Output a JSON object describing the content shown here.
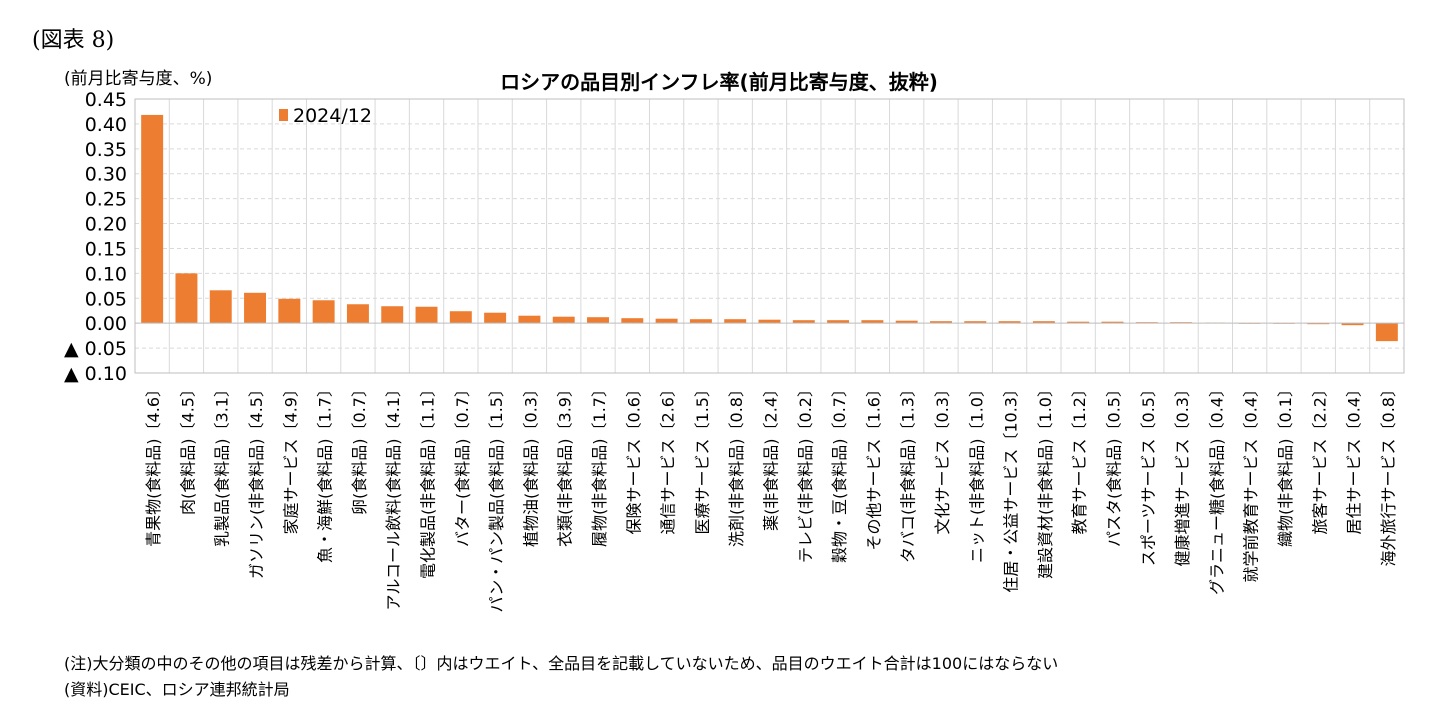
{
  "figure_label": "(図表 8)",
  "notes": {
    "note": "(注)大分類の中のその他の項目は残差から計算、〔〕内はウエイト、全品目を記載していないため、品目のウエイト合計は100にはならない",
    "source": "(資料)CEIC、ロシア連邦統計局"
  },
  "colors": {
    "bar": "#ED7D31",
    "grid": "#D9D9D9",
    "axis": "#BFBFBF"
  },
  "chart_data": {
    "type": "bar",
    "title": "ロシアの品目別インフレ率(前月比寄与度、抜粋)",
    "ylabel": "(前月比寄与度、%)",
    "xlabel": "",
    "ylim": [
      -0.1,
      0.45
    ],
    "yticks": [
      -0.1,
      -0.05,
      0.0,
      0.05,
      0.1,
      0.15,
      0.2,
      0.25,
      0.3,
      0.35,
      0.4,
      0.45
    ],
    "ytick_labels": [
      "▲ 0.10",
      "▲ 0.05",
      "0.00",
      "0.05",
      "0.10",
      "0.15",
      "0.20",
      "0.25",
      "0.30",
      "0.35",
      "0.40",
      "0.45"
    ],
    "grid": true,
    "legend_position": "top-left",
    "categories": [
      "青果物(食料品)〔4.6〕",
      "肉(食料品)〔4.5〕",
      "乳製品(食料品)〔3.1〕",
      "ガソリン(非食料品)〔4.5〕",
      "家庭サービス〔4.9〕",
      "魚・海鮮(食料品)〔1.7〕",
      "卵(食料品)〔0.7〕",
      "アルコール飲料(食料品)〔4.1〕",
      "電化製品(非食料品)〔1.1〕",
      "バター(食料品)〔0.7〕",
      "パン・パン製品(食料品)〔1.5〕",
      "植物油(食料品)〔0.3〕",
      "衣類(非食料品)〔3.9〕",
      "履物(非食料品)〔1.7〕",
      "保険サービス〔0.6〕",
      "通信サービス〔2.6〕",
      "医療サービス〔1.5〕",
      "洗剤(非食料品)〔0.8〕",
      "薬(非食料品)〔2.4〕",
      "テレビ(非食料品)〔0.2〕",
      "穀物・豆(食料品)〔0.7〕",
      "その他サービス〔1.6〕",
      "タバコ(非食料品)〔1.3〕",
      "文化サービス〔0.3〕",
      "ニット(非食料品)〔1.0〕",
      "住居・公益サービス〔10.3〕",
      "建設資材(非食料品)〔1.0〕",
      "教育サービス〔1.2〕",
      "パスタ(食料品)〔0.5〕",
      "スポーツサービス〔0.5〕",
      "健康増進サービス〔0.3〕",
      "グラニュー糖(食料品)〔0.4〕",
      "就学前教育サービス〔0.4〕",
      "織物(非食料品)〔0.1〕",
      "旅客サービス〔2.2〕",
      "居住サービス〔0.4〕",
      "海外旅行サービス〔0.8〕"
    ],
    "series": [
      {
        "name": "2024/12",
        "values": [
          0.418,
          0.1,
          0.066,
          0.061,
          0.049,
          0.046,
          0.038,
          0.034,
          0.033,
          0.024,
          0.021,
          0.015,
          0.013,
          0.012,
          0.01,
          0.009,
          0.008,
          0.008,
          0.007,
          0.006,
          0.006,
          0.006,
          0.005,
          0.004,
          0.004,
          0.004,
          0.004,
          0.003,
          0.003,
          0.002,
          0.002,
          0.001,
          0.0,
          0.0,
          -0.002,
          -0.004,
          -0.036
        ]
      }
    ]
  }
}
